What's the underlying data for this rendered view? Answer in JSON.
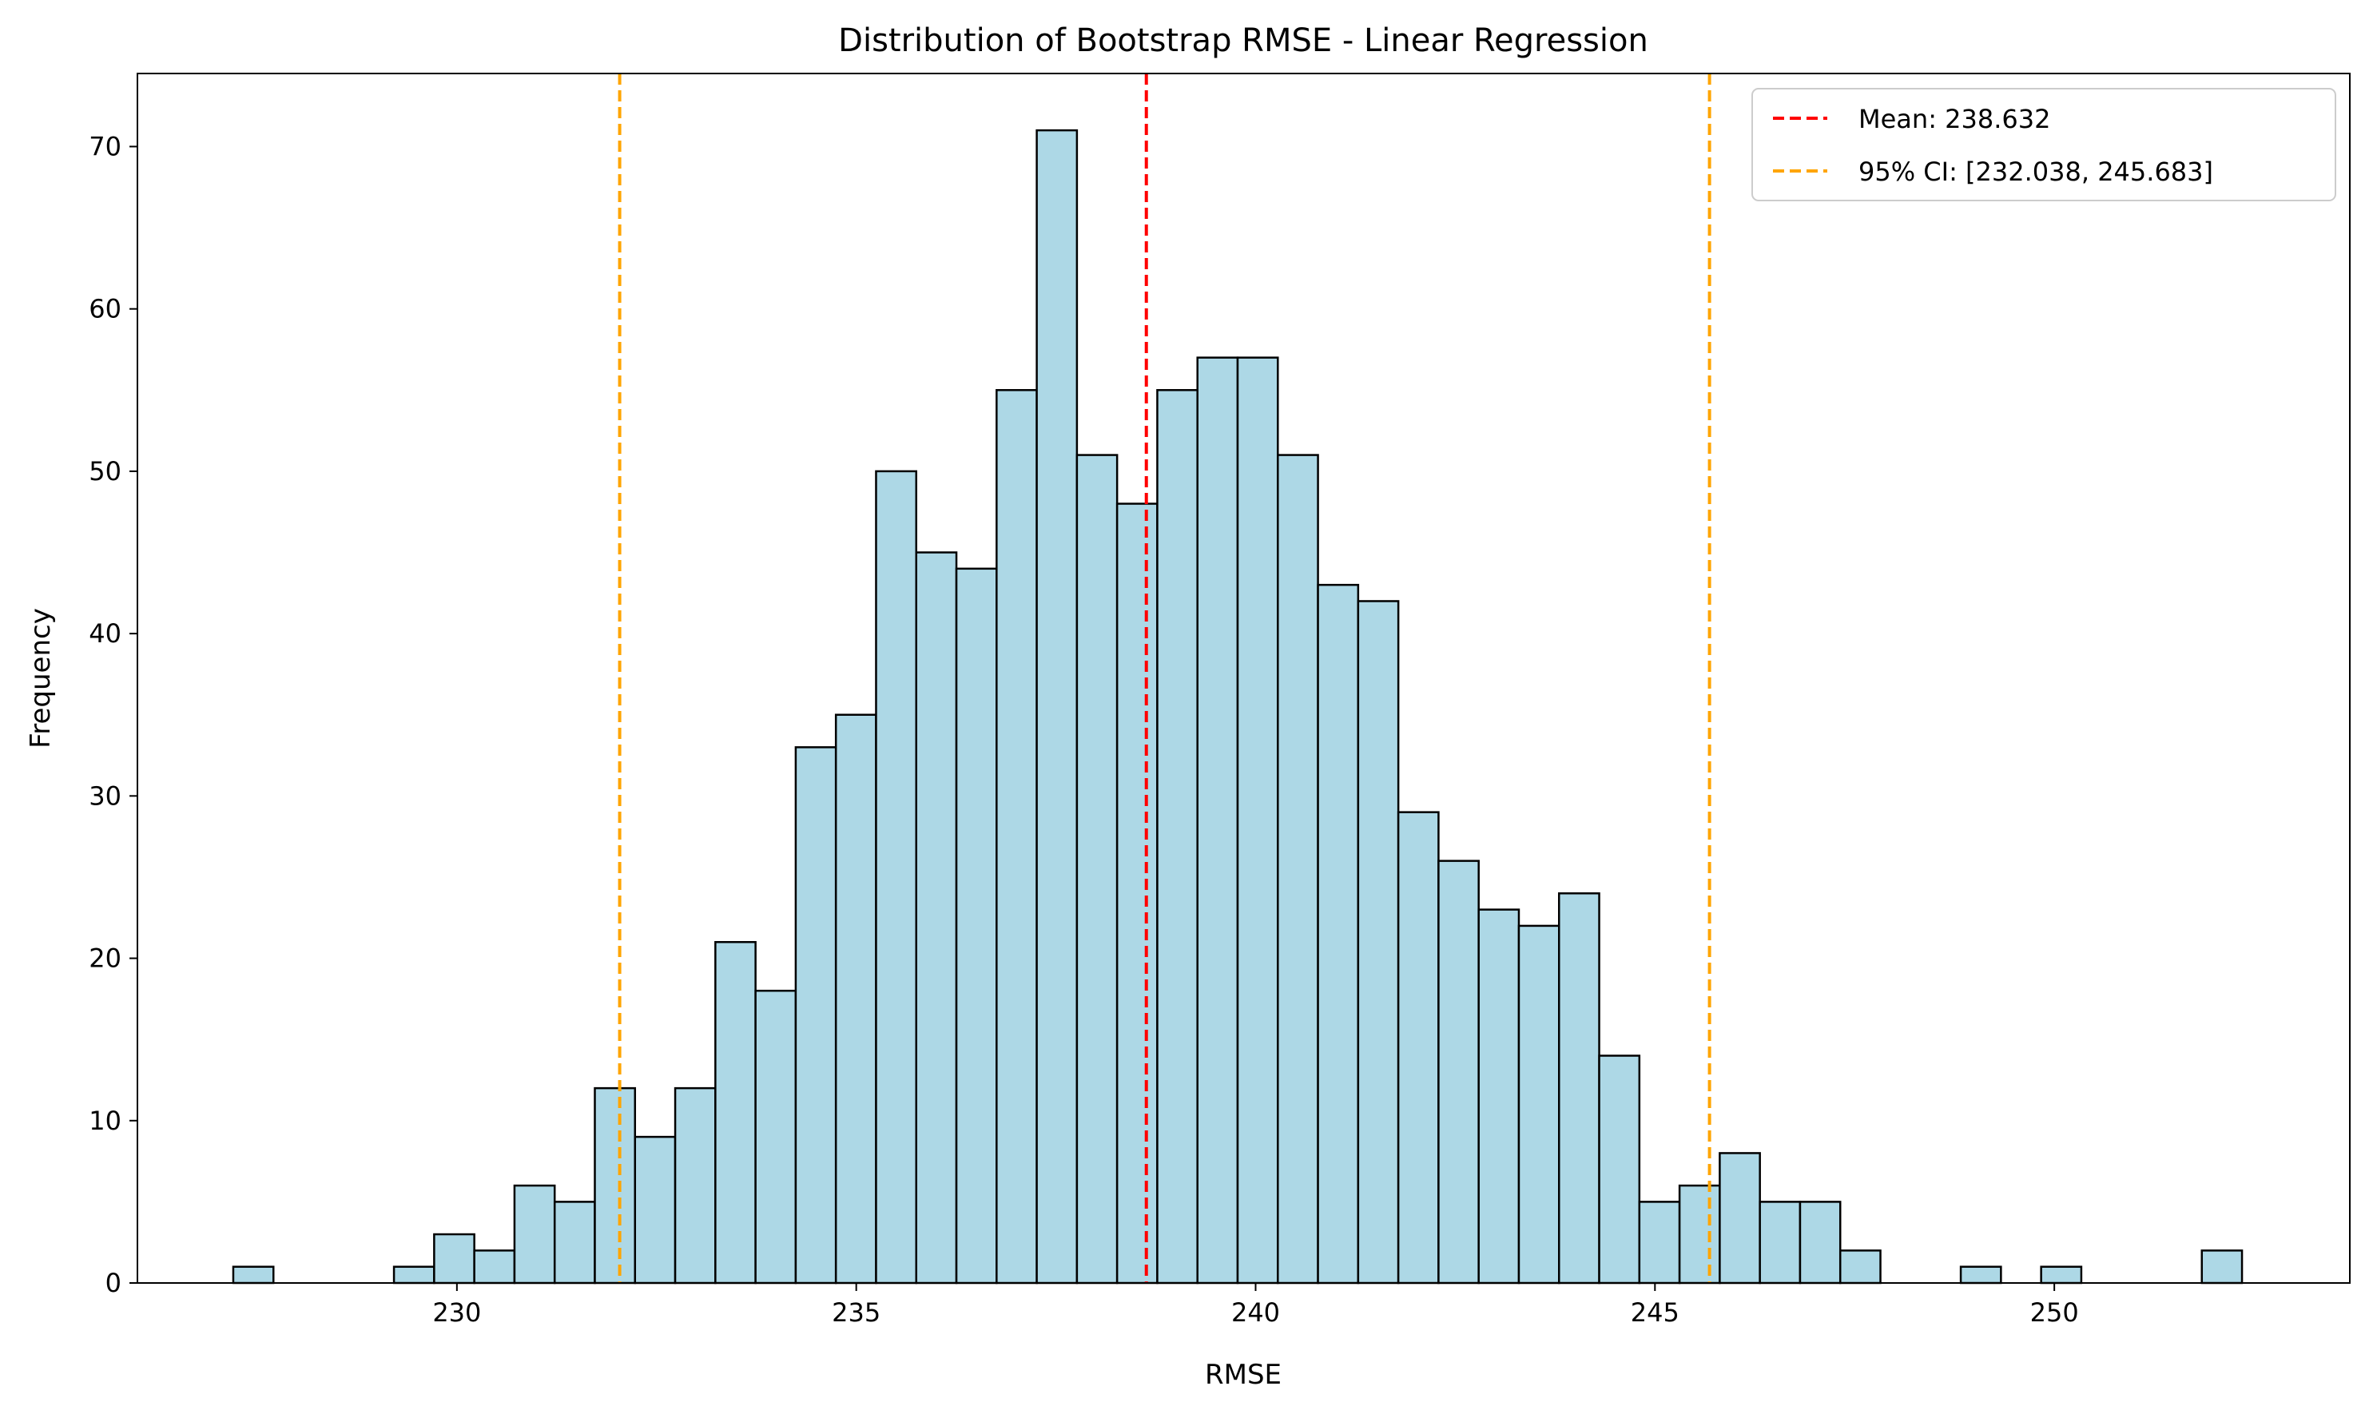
{
  "chart_data": {
    "type": "histogram",
    "title": "Distribution of Bootstrap RMSE - Linear Regression",
    "xlabel": "RMSE",
    "ylabel": "Frequency",
    "xlim": [
      226.0,
      253.7
    ],
    "ylim": [
      0,
      74.5
    ],
    "xticks": [
      230,
      235,
      240,
      245,
      250
    ],
    "yticks": [
      0,
      10,
      20,
      30,
      40,
      50,
      60,
      70
    ],
    "bin_start": 227.2,
    "bin_width": 0.503,
    "counts": [
      1,
      0,
      0,
      0,
      1,
      3,
      2,
      6,
      5,
      12,
      9,
      12,
      21,
      18,
      33,
      35,
      50,
      45,
      44,
      55,
      71,
      51,
      48,
      55,
      57,
      57,
      51,
      43,
      42,
      29,
      26,
      23,
      22,
      24,
      14,
      5,
      6,
      8,
      5,
      5,
      2,
      0,
      0,
      1,
      0,
      1,
      0,
      0,
      0,
      2
    ],
    "bar_color": "#add8e6",
    "bar_edge_color": "#000000",
    "grid": false,
    "legend_position": "top-right",
    "reference_lines": [
      {
        "x": 238.632,
        "color": "#ff0000",
        "style": "dashed",
        "label": "Mean: 238.632"
      },
      {
        "x": 232.038,
        "color": "#ffa500",
        "style": "dashed",
        "label": "95% CI: [232.038, 245.683]"
      },
      {
        "x": 245.683,
        "color": "#ffa500",
        "style": "dashed",
        "label": ""
      }
    ],
    "legend": [
      {
        "label": "Mean: 238.632",
        "color": "#ff0000"
      },
      {
        "label": "95% CI: [232.038, 245.683]",
        "color": "#ffa500"
      }
    ]
  }
}
